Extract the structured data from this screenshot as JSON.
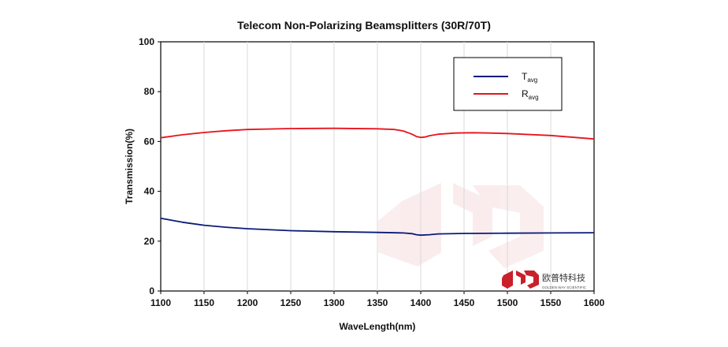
{
  "chart_data": {
    "type": "line",
    "title": "Telecom Non-Polarizing Beamsplitters  (30R/70T)",
    "xlabel": "WaveLength(nm)",
    "ylabel": "Transmission(%)",
    "xlim": [
      1100,
      1600
    ],
    "ylim": [
      0,
      100
    ],
    "xticks": [
      1100,
      1150,
      1200,
      1250,
      1300,
      1350,
      1400,
      1450,
      1500,
      1550,
      1600
    ],
    "yticks": [
      0,
      20,
      40,
      60,
      80,
      100
    ],
    "grid": "vertical",
    "legend_position": "top-right",
    "series": [
      {
        "name": "T",
        "name_sub": "avg",
        "color": "#0b1a7a",
        "x": [
          1100,
          1125,
          1150,
          1175,
          1200,
          1250,
          1300,
          1350,
          1380,
          1390,
          1395,
          1400,
          1410,
          1420,
          1450,
          1500,
          1550,
          1600
        ],
        "y": [
          29.2,
          27.6,
          26.4,
          25.6,
          25.0,
          24.2,
          23.8,
          23.5,
          23.3,
          23.0,
          22.6,
          22.4,
          22.6,
          22.9,
          23.1,
          23.2,
          23.3,
          23.4
        ]
      },
      {
        "name": "R",
        "name_sub": "avg",
        "color": "#e8141b",
        "x": [
          1100,
          1125,
          1150,
          1175,
          1200,
          1250,
          1300,
          1350,
          1370,
          1380,
          1390,
          1395,
          1400,
          1405,
          1410,
          1420,
          1440,
          1460,
          1480,
          1500,
          1550,
          1600
        ],
        "y": [
          61.5,
          62.7,
          63.6,
          64.3,
          64.8,
          65.2,
          65.3,
          65.1,
          64.8,
          64.2,
          62.9,
          62.0,
          61.6,
          61.8,
          62.3,
          62.9,
          63.4,
          63.5,
          63.4,
          63.2,
          62.4,
          61.0
        ]
      }
    ]
  },
  "brand": {
    "name_cn": "欧普特科技",
    "name_en": "GOLDEN WAY SCIENTIFIC",
    "color": "#c9202c"
  }
}
